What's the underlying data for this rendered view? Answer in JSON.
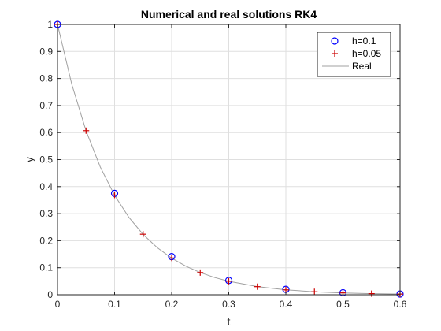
{
  "chart_data": {
    "type": "line",
    "title": "Numerical and real solutions RK4",
    "xlabel": "t",
    "ylabel": "y",
    "xlim": [
      0,
      0.6
    ],
    "ylim": [
      0,
      1
    ],
    "x_ticks": [
      "0",
      "0.1",
      "0.2",
      "0.3",
      "0.4",
      "0.5",
      "0.6"
    ],
    "y_ticks": [
      "0",
      "0.1",
      "0.2",
      "0.3",
      "0.4",
      "0.5",
      "0.6",
      "0.7",
      "0.8",
      "0.9",
      "1"
    ],
    "grid": true,
    "legend_position": "top-right",
    "series": [
      {
        "name": "h=0.1",
        "marker": "circle",
        "color": "#0000ff",
        "x": [
          0,
          0.1,
          0.2,
          0.3,
          0.4,
          0.5,
          0.6
        ],
        "y": [
          1,
          0.375,
          0.141,
          0.053,
          0.02,
          0.0074,
          0.0028
        ]
      },
      {
        "name": "h=0.05",
        "marker": "plus",
        "color": "#cc0000",
        "x": [
          0,
          0.05,
          0.1,
          0.15,
          0.2,
          0.25,
          0.3,
          0.35,
          0.4,
          0.45,
          0.5,
          0.55,
          0.6
        ],
        "y": [
          1,
          0.607,
          0.369,
          0.224,
          0.136,
          0.082,
          0.05,
          0.03,
          0.018,
          0.011,
          0.0068,
          0.0041,
          0.0025
        ]
      },
      {
        "name": "Real",
        "marker": "none",
        "color": "#a0a0a0",
        "x": [
          0,
          0.025,
          0.05,
          0.075,
          0.1,
          0.125,
          0.15,
          0.175,
          0.2,
          0.225,
          0.25,
          0.275,
          0.3,
          0.35,
          0.4,
          0.45,
          0.5,
          0.55,
          0.6
        ],
        "y": [
          1,
          0.7788,
          0.6065,
          0.4724,
          0.3679,
          0.2865,
          0.2231,
          0.1738,
          0.1353,
          0.1054,
          0.0821,
          0.0639,
          0.0498,
          0.0302,
          0.0183,
          0.0111,
          0.0067,
          0.0041,
          0.0025
        ]
      }
    ]
  }
}
